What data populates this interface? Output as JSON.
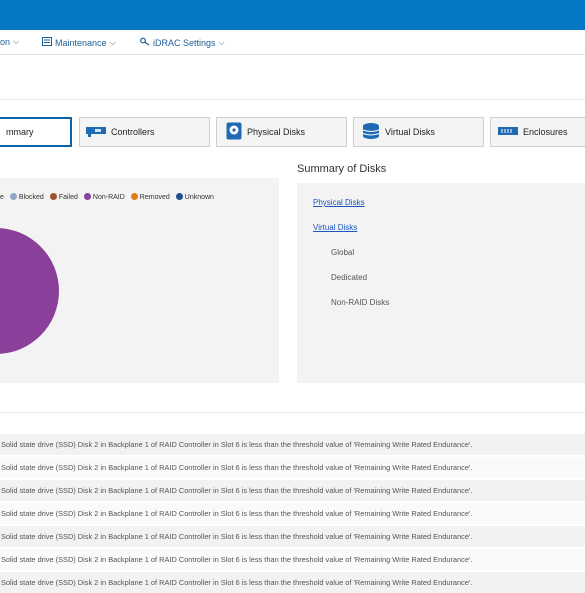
{
  "nav": {
    "partial_item": "on",
    "maintenance": "Maintenance",
    "idrac_settings": "iDRAC Settings"
  },
  "tabs": [
    {
      "label": "mmary",
      "icon": "summary"
    },
    {
      "label": "Controllers",
      "icon": "controller-icon"
    },
    {
      "label": "Physical Disks",
      "icon": "physical-disk-icon"
    },
    {
      "label": "Virtual Disks",
      "icon": "virtual-disk-icon"
    },
    {
      "label": "Enclosures",
      "icon": "enclosure-icon"
    }
  ],
  "legend": [
    {
      "label": "e",
      "color": ""
    },
    {
      "label": "Blocked",
      "color": "#8fa9c9"
    },
    {
      "label": "Failed",
      "color": "#a0522d"
    },
    {
      "label": "Non-RAID",
      "color": "#8a3f9a"
    },
    {
      "label": "Removed",
      "color": "#e07b1a"
    },
    {
      "label": "Unknown",
      "color": "#1f4e8c"
    }
  ],
  "chart_data": {
    "type": "pie",
    "categories": [
      "Non-RAID"
    ],
    "values": [
      100
    ],
    "colors": [
      "#8a3f9a"
    ]
  },
  "summary": {
    "title": "Summary of Disks",
    "physical_disks": "Physical Disks",
    "virtual_disks": "Virtual Disks",
    "global": "Global",
    "dedicated": "Dedicated",
    "non_raid": "Non-RAID Disks"
  },
  "log_rows": [
    "Solid state drive (SSD) Disk 2 in Backplane 1 of RAID Controller in Slot 6 is less than the threshold value of 'Remaining Write Rated Endurance'.",
    "Solid state drive (SSD) Disk 2 in Backplane 1 of RAID Controller in Slot 6 is less than the threshold value of 'Remaining Write Rated Endurance'.",
    "Solid state drive (SSD) Disk 2 in Backplane 1 of RAID Controller in Slot 6 is less than the threshold value of 'Remaining Write Rated Endurance'.",
    "Solid state drive (SSD) Disk 2 in Backplane 1 of RAID Controller in Slot 6 is less than the threshold value of 'Remaining Write Rated Endurance'.",
    "Solid state drive (SSD) Disk 2 in Backplane 1 of RAID Controller in Slot 6 is less than the threshold value of 'Remaining Write Rated Endurance'.",
    "Solid state drive (SSD) Disk 2 in Backplane 1 of RAID Controller in Slot 6 is less than the threshold value of 'Remaining Write Rated Endurance'.",
    "Solid state drive (SSD) Disk 2 in Backplane 1 of RAID Controller in Slot 6 is less than the threshold value of 'Remaining Write Rated Endurance'."
  ]
}
